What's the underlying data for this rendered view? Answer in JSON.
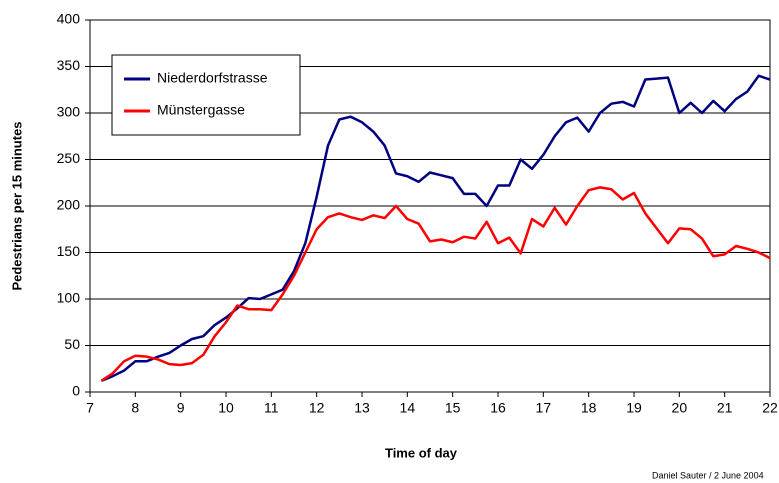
{
  "chart_data": {
    "type": "line",
    "x_label": "Time of day",
    "y_label": "Pedestrians per 15 minutes",
    "credit": "Daniel Sauter / 2 June 2004",
    "x": [
      7.25,
      7.5,
      7.75,
      8,
      8.25,
      8.5,
      8.75,
      9,
      9.25,
      9.5,
      9.75,
      10,
      10.25,
      10.5,
      10.75,
      11,
      11.25,
      11.5,
      11.75,
      12,
      12.25,
      12.5,
      12.75,
      13,
      13.25,
      13.5,
      13.75,
      14,
      14.25,
      14.5,
      14.75,
      15,
      15.25,
      15.5,
      15.75,
      16,
      16.25,
      16.5,
      16.75,
      17,
      17.25,
      17.5,
      17.75,
      18,
      18.25,
      18.5,
      18.75,
      19,
      19.25,
      19.5,
      19.75,
      20,
      20.25,
      20.5,
      20.75,
      21,
      21.25,
      21.5,
      21.75,
      22
    ],
    "series": [
      {
        "name": "Niederdorfstrasse",
        "color": "#000080",
        "values": [
          12,
          17,
          23,
          33,
          33,
          38,
          42,
          50,
          57,
          60,
          72,
          80,
          90,
          101,
          100,
          105,
          110,
          130,
          160,
          210,
          265,
          293,
          296,
          290,
          280,
          265,
          235,
          232,
          226,
          236,
          233,
          230,
          213,
          213,
          200,
          222,
          222,
          250,
          240,
          255,
          275,
          290,
          295,
          280,
          300,
          310,
          312,
          307,
          336,
          337,
          338,
          300,
          311,
          300,
          313,
          302,
          315,
          323,
          340,
          336
        ]
      },
      {
        "name": "Münstergasse",
        "color": "#ff0000",
        "values": [
          12,
          20,
          33,
          39,
          38,
          35,
          30,
          29,
          31,
          40,
          60,
          75,
          93,
          89,
          89,
          88,
          105,
          125,
          150,
          175,
          188,
          192,
          188,
          185,
          190,
          187,
          200,
          186,
          181,
          162,
          164,
          161,
          167,
          165,
          183,
          160,
          166,
          149,
          186,
          178,
          198,
          180,
          200,
          217,
          220,
          218,
          207,
          214,
          192,
          176,
          160,
          176,
          175,
          165,
          146,
          148,
          157,
          154,
          150,
          144
        ]
      }
    ],
    "xlim": [
      7,
      22
    ],
    "xticks": [
      7,
      8,
      9,
      10,
      11,
      12,
      13,
      14,
      15,
      16,
      17,
      18,
      19,
      20,
      21,
      22
    ],
    "ylim": [
      0,
      400
    ],
    "yticks": [
      0,
      50,
      100,
      150,
      200,
      250,
      300,
      350,
      400
    ],
    "grid": true,
    "legend": "upper left"
  }
}
